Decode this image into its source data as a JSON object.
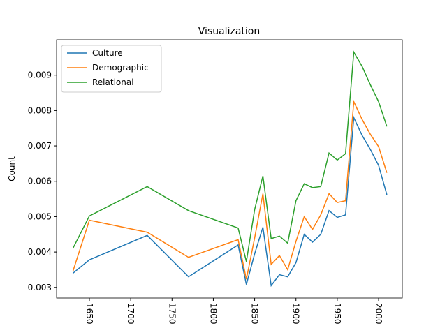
{
  "chart_data": {
    "type": "line",
    "title": "Visualization",
    "y_label": "Count",
    "x": [
      1630,
      1650,
      1720,
      1770,
      1830,
      1840,
      1850,
      1860,
      1870,
      1880,
      1890,
      1900,
      1910,
      1920,
      1930,
      1940,
      1950,
      1960,
      1970,
      1980,
      1990,
      2000,
      2010
    ],
    "series": [
      {
        "name": "Culture",
        "color": "#1f77b4",
        "values": [
          0.0034,
          0.00378,
          0.00447,
          0.0033,
          0.0042,
          0.00308,
          0.00395,
          0.0047,
          0.00305,
          0.00336,
          0.0033,
          0.0037,
          0.0045,
          0.00428,
          0.0045,
          0.00517,
          0.00498,
          0.00505,
          0.0078,
          0.0073,
          0.0069,
          0.00645,
          0.00562
        ]
      },
      {
        "name": "Demographic",
        "color": "#ff7f0e",
        "values": [
          0.00345,
          0.0049,
          0.00456,
          0.00385,
          0.00435,
          0.00323,
          0.0044,
          0.00565,
          0.00365,
          0.0039,
          0.0035,
          0.0043,
          0.005,
          0.00464,
          0.00505,
          0.00565,
          0.0054,
          0.00545,
          0.00825,
          0.00775,
          0.00733,
          0.00698,
          0.00624
        ]
      },
      {
        "name": "Relational",
        "color": "#2ca02c",
        "values": [
          0.0041,
          0.00502,
          0.00585,
          0.00517,
          0.00468,
          0.00373,
          0.0052,
          0.00615,
          0.00438,
          0.00445,
          0.00425,
          0.00545,
          0.00593,
          0.00582,
          0.00585,
          0.0068,
          0.0066,
          0.00678,
          0.00965,
          0.00925,
          0.00873,
          0.00825,
          0.00755
        ]
      }
    ],
    "xlim": [
      1610.3,
      2028.7
    ],
    "xticks": [
      1650,
      1700,
      1750,
      1800,
      1850,
      1900,
      1950,
      2000
    ],
    "ylim": [
      0.0027,
      0.01
    ],
    "yticks": [
      0.003,
      0.004,
      0.005,
      0.006,
      0.007,
      0.008,
      0.009
    ],
    "legend": "upper left",
    "grid": false
  }
}
